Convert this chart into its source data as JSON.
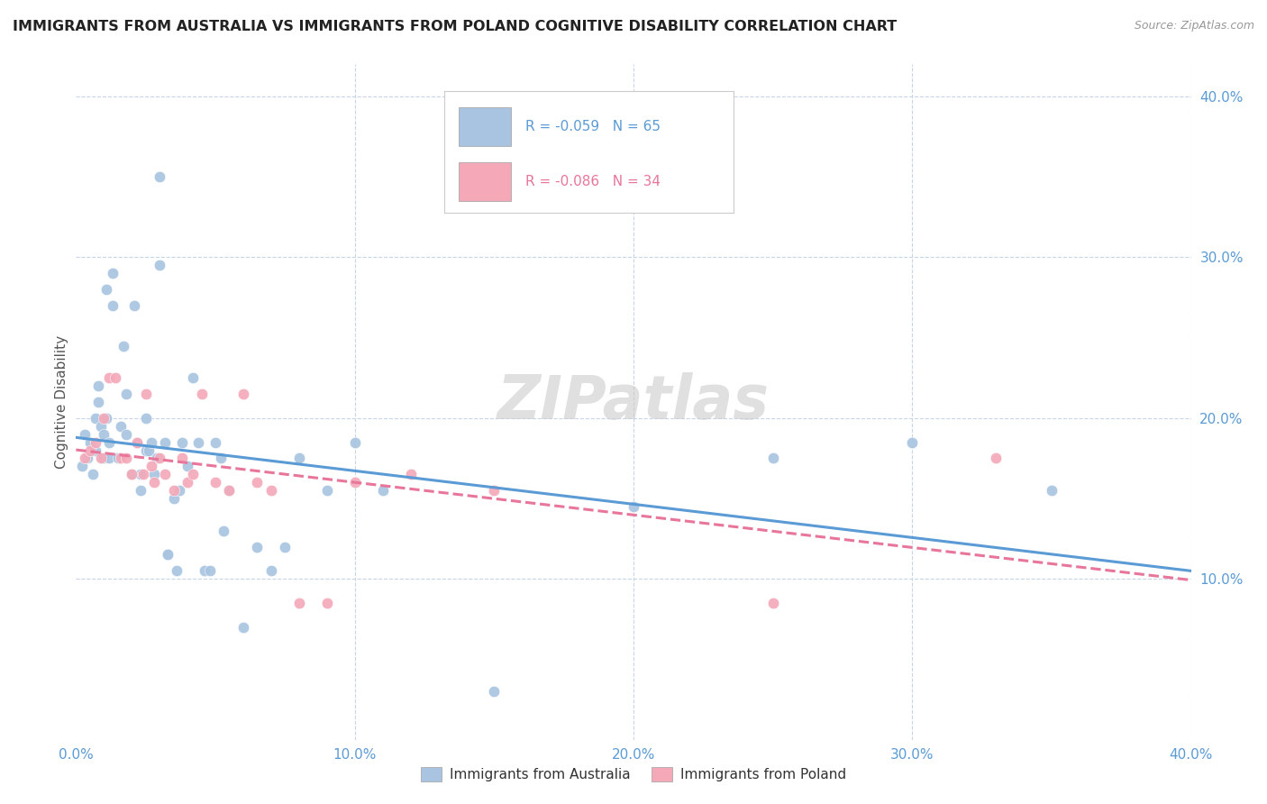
{
  "title": "IMMIGRANTS FROM AUSTRALIA VS IMMIGRANTS FROM POLAND COGNITIVE DISABILITY CORRELATION CHART",
  "source": "Source: ZipAtlas.com",
  "ylabel": "Cognitive Disability",
  "xlim": [
    0.0,
    0.4
  ],
  "ylim": [
    0.0,
    0.42
  ],
  "xtick_labels": [
    "0.0%",
    "10.0%",
    "20.0%",
    "30.0%",
    "40.0%"
  ],
  "xtick_vals": [
    0.0,
    0.1,
    0.2,
    0.3,
    0.4
  ],
  "ytick_labels_right": [
    "10.0%",
    "20.0%",
    "30.0%",
    "40.0%"
  ],
  "ytick_vals_right": [
    0.1,
    0.2,
    0.3,
    0.4
  ],
  "color_australia": "#a8c4e0",
  "color_poland": "#f4a8b8",
  "line_color_australia": "#5b9bd5",
  "line_color_poland": "#e8769a",
  "R_australia": -0.059,
  "N_australia": 65,
  "R_poland": -0.086,
  "N_poland": 34,
  "background_color": "#ffffff",
  "grid_color": "#c8d4e8",
  "watermark": "ZIPatlas",
  "title_color": "#222222",
  "source_color": "#999999",
  "tick_color": "#5b9bd5",
  "ylabel_color": "#555555",
  "australia_x": [
    0.002,
    0.003,
    0.004,
    0.005,
    0.006,
    0.007,
    0.007,
    0.008,
    0.008,
    0.009,
    0.01,
    0.01,
    0.011,
    0.011,
    0.012,
    0.012,
    0.013,
    0.013,
    0.015,
    0.016,
    0.017,
    0.018,
    0.018,
    0.02,
    0.021,
    0.022,
    0.023,
    0.023,
    0.025,
    0.025,
    0.026,
    0.027,
    0.028,
    0.029,
    0.03,
    0.03,
    0.032,
    0.033,
    0.033,
    0.035,
    0.036,
    0.037,
    0.038,
    0.04,
    0.042,
    0.044,
    0.046,
    0.048,
    0.05,
    0.052,
    0.053,
    0.055,
    0.06,
    0.065,
    0.07,
    0.075,
    0.08,
    0.09,
    0.1,
    0.11,
    0.15,
    0.2,
    0.25,
    0.3,
    0.35
  ],
  "australia_y": [
    0.17,
    0.19,
    0.175,
    0.185,
    0.165,
    0.2,
    0.18,
    0.21,
    0.22,
    0.195,
    0.175,
    0.19,
    0.28,
    0.2,
    0.175,
    0.185,
    0.29,
    0.27,
    0.175,
    0.195,
    0.245,
    0.215,
    0.19,
    0.165,
    0.27,
    0.185,
    0.155,
    0.165,
    0.18,
    0.2,
    0.18,
    0.185,
    0.165,
    0.175,
    0.35,
    0.295,
    0.185,
    0.115,
    0.115,
    0.15,
    0.105,
    0.155,
    0.185,
    0.17,
    0.225,
    0.185,
    0.105,
    0.105,
    0.185,
    0.175,
    0.13,
    0.155,
    0.07,
    0.12,
    0.105,
    0.12,
    0.175,
    0.155,
    0.185,
    0.155,
    0.03,
    0.145,
    0.175,
    0.185,
    0.155
  ],
  "poland_x": [
    0.003,
    0.005,
    0.007,
    0.009,
    0.01,
    0.012,
    0.014,
    0.016,
    0.018,
    0.02,
    0.022,
    0.024,
    0.025,
    0.027,
    0.028,
    0.03,
    0.032,
    0.035,
    0.038,
    0.04,
    0.042,
    0.045,
    0.05,
    0.055,
    0.06,
    0.065,
    0.07,
    0.08,
    0.09,
    0.1,
    0.12,
    0.15,
    0.25,
    0.33
  ],
  "poland_y": [
    0.175,
    0.18,
    0.185,
    0.175,
    0.2,
    0.225,
    0.225,
    0.175,
    0.175,
    0.165,
    0.185,
    0.165,
    0.215,
    0.17,
    0.16,
    0.175,
    0.165,
    0.155,
    0.175,
    0.16,
    0.165,
    0.215,
    0.16,
    0.155,
    0.215,
    0.16,
    0.155,
    0.085,
    0.085,
    0.16,
    0.165,
    0.155,
    0.085,
    0.175
  ]
}
